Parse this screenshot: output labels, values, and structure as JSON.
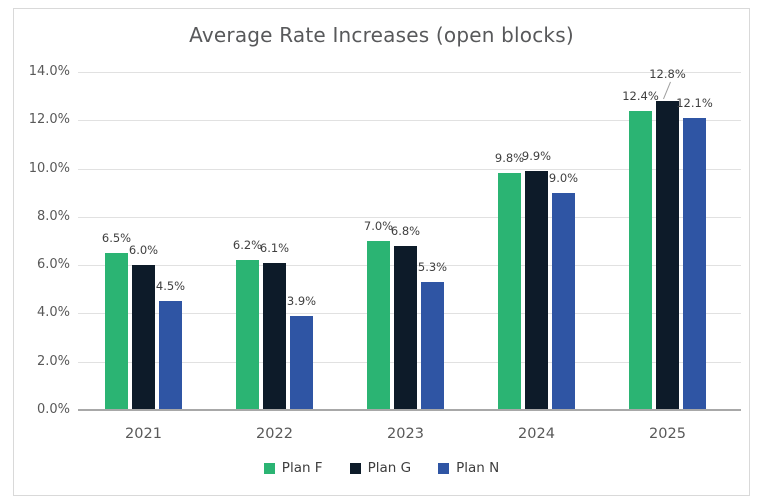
{
  "title": "Average Rate Increases (open blocks)",
  "chart_data": {
    "type": "bar",
    "title": "Average Rate Increases (open blocks)",
    "categories": [
      "2021",
      "2022",
      "2023",
      "2024",
      "2025"
    ],
    "series": [
      {
        "name": "Plan F",
        "color": "#2BB473",
        "values": [
          6.5,
          6.2,
          7.0,
          9.8,
          12.4
        ],
        "labels": [
          "6.5%",
          "6.2%",
          "7.0%",
          "9.8%",
          "12.4%"
        ]
      },
      {
        "name": "Plan G",
        "color": "#0D1B29",
        "values": [
          6.0,
          6.1,
          6.8,
          9.9,
          12.8
        ],
        "labels": [
          "6.0%",
          "6.1%",
          "6.8%",
          "9.9%",
          "12.8%"
        ]
      },
      {
        "name": "Plan N",
        "color": "#2F55A4",
        "values": [
          4.5,
          3.9,
          5.3,
          9.0,
          12.1
        ],
        "labels": [
          "4.5%",
          "3.9%",
          "5.3%",
          "9.0%",
          "12.1%"
        ]
      }
    ],
    "ylim": [
      0,
      14
    ],
    "ytick_step": 2,
    "ytick_labels": [
      "0.0%",
      "2.0%",
      "4.0%",
      "6.0%",
      "8.0%",
      "10.0%",
      "12.0%",
      "14.0%"
    ],
    "grid": true,
    "legend_position": "bottom",
    "annotations": {
      "raised_label": {
        "category": "2025",
        "series": "Plan G",
        "dy": -12,
        "leader": true
      }
    }
  },
  "colors": {
    "grid": "#E1E1E1",
    "axis_line": "#A8A8A8",
    "frame_border": "#D9D9D9",
    "title_text": "#58595B",
    "axis_text": "#595959",
    "label_text": "#404040",
    "legend_text": "#3D3D3D",
    "leader_line": "#9E9E9E"
  }
}
